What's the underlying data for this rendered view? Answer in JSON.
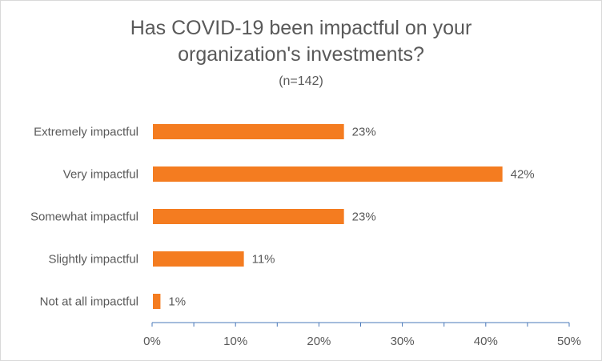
{
  "chart_data": {
    "type": "bar",
    "orientation": "horizontal",
    "title_lines": [
      "Has COVID-19 been impactful on your",
      "organization's investments?"
    ],
    "subtitle": "(n=142)",
    "categories": [
      "Extremely impactful",
      "Very impactful",
      "Somewhat impactful",
      "Slightly impactful",
      "Not at all impactful"
    ],
    "values": [
      23,
      42,
      23,
      11,
      1
    ],
    "data_labels": [
      "23%",
      "42%",
      "23%",
      "11%",
      "1%"
    ],
    "x_ticks": [
      "0%",
      "10%",
      "20%",
      "30%",
      "40%",
      "50%"
    ],
    "xlim": [
      0,
      50
    ],
    "grid": false,
    "legend": "none",
    "bar_color": "#f47c20",
    "axis_color": "#4a78b8",
    "text_color": "#595959"
  }
}
